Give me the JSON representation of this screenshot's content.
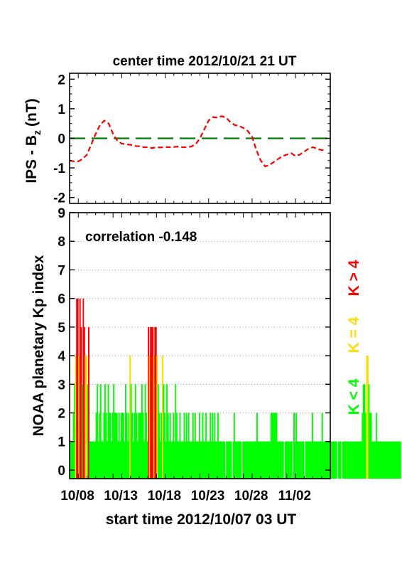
{
  "colors": {
    "bz_line": "#ff0000",
    "zero_line": "#008000",
    "kp_low": "#00ff00",
    "kp_mid": "#ffdd00",
    "kp_high": "#ff0000"
  },
  "chart_data": [
    {
      "type": "line",
      "title": "center time 2012/10/21 21 UT",
      "ylabel_main": "IPS - B",
      "ylabel_sub": "z",
      "ylabel_unit": "(nT)",
      "xlim": [
        0,
        30
      ],
      "ylim": [
        -2.2,
        2.2
      ],
      "yticks": [
        "2",
        "1",
        "0",
        "-1",
        "-2"
      ],
      "ytick_values": [
        2,
        1,
        0,
        -1,
        -2
      ],
      "reference_line": {
        "y": 0,
        "style": "dashed"
      },
      "series": [
        {
          "style": "dashed",
          "x": [
            0.0,
            0.5,
            1.0,
            1.5,
            2.0,
            2.5,
            3.0,
            3.5,
            4.0,
            4.5,
            5.0,
            5.5,
            6.0,
            6.5,
            7.0,
            7.5,
            8.0,
            8.5,
            9.0,
            9.5,
            10.0,
            10.5,
            11.0,
            11.5,
            12.0,
            12.5,
            13.0,
            13.5,
            14.0,
            14.5,
            15.0,
            15.5,
            16.0,
            16.5,
            17.0,
            17.5,
            18.0,
            18.5,
            19.0,
            19.5,
            20.0,
            20.5,
            21.0,
            21.5,
            22.0,
            22.5,
            23.0,
            23.5,
            24.0,
            24.5,
            25.0,
            25.5,
            26.0,
            26.5,
            27.0,
            27.5,
            28.0,
            28.5,
            29.0,
            29.5
          ],
          "values": [
            -0.75,
            -0.78,
            -0.78,
            -0.7,
            -0.55,
            -0.2,
            0.15,
            0.45,
            0.6,
            0.5,
            0.15,
            -0.08,
            -0.18,
            -0.2,
            -0.22,
            -0.26,
            -0.27,
            -0.3,
            -0.3,
            -0.33,
            -0.3,
            -0.31,
            -0.29,
            -0.3,
            -0.29,
            -0.28,
            -0.3,
            -0.3,
            -0.28,
            -0.2,
            0.0,
            0.3,
            0.6,
            0.72,
            0.7,
            0.75,
            0.7,
            0.55,
            0.45,
            0.42,
            0.35,
            0.25,
            0.05,
            -0.4,
            -0.75,
            -0.95,
            -0.9,
            -0.8,
            -0.7,
            -0.6,
            -0.55,
            -0.5,
            -0.6,
            -0.55,
            -0.45,
            -0.35,
            -0.3,
            -0.35,
            -0.4,
            -0.38
          ]
        }
      ]
    },
    {
      "type": "bar",
      "annotation": "correlation -0.148",
      "ylabel": "NOAA planetary Kp index",
      "xlabel": "start time 2012/10/07 03 UT",
      "xlim": [
        0,
        30
      ],
      "ylim": [
        -0.3,
        9
      ],
      "yticks": [
        "9",
        "8",
        "7",
        "6",
        "5",
        "4",
        "3",
        "2",
        "1",
        "0"
      ],
      "ytick_values": [
        9,
        8,
        7,
        6,
        5,
        4,
        3,
        2,
        1,
        0
      ],
      "xticks": [
        "10/08",
        "10/13",
        "10/18",
        "10/23",
        "10/28",
        "11/02"
      ],
      "xtick_values": [
        0.9,
        5.9,
        10.9,
        15.9,
        20.9,
        25.9
      ],
      "grid": true,
      "legend": [
        "K < 4",
        "K = 4",
        "K > 4"
      ],
      "bar_step": 0.125,
      "kp": [
        1,
        1,
        1,
        2,
        3,
        4,
        6,
        6,
        4,
        6,
        5,
        3,
        6,
        5,
        4,
        4,
        3,
        5,
        1,
        1,
        1,
        1,
        1,
        1,
        2,
        3,
        1,
        2,
        3,
        1,
        1,
        2,
        3,
        2,
        1,
        3,
        2,
        2,
        1,
        2,
        3,
        2,
        2,
        2,
        1,
        2,
        1,
        2,
        2,
        2,
        1,
        3,
        2,
        1,
        2,
        4,
        3,
        2,
        1,
        2,
        3,
        2,
        1,
        2,
        2,
        2,
        3,
        2,
        1,
        3,
        2,
        1,
        5,
        4,
        5,
        5,
        5,
        4,
        5,
        5,
        4,
        3,
        2,
        1,
        2,
        4,
        3,
        2,
        1,
        3,
        2,
        1,
        2,
        1,
        1,
        2,
        1,
        3,
        2,
        1,
        1,
        2,
        1,
        1,
        1,
        2,
        1,
        2,
        1,
        2,
        1,
        1,
        1,
        2,
        1,
        2,
        1,
        1,
        1,
        2,
        1,
        1,
        2,
        1,
        1,
        2,
        1,
        1,
        1,
        2,
        1,
        2,
        1,
        2,
        1,
        1,
        2,
        1,
        1,
        1,
        1,
        1,
        1,
        0,
        1,
        1,
        1,
        1,
        1,
        0,
        1,
        2,
        1,
        1,
        1,
        1,
        1,
        1,
        0,
        1,
        1,
        1,
        1,
        1,
        1,
        1,
        1,
        1,
        1,
        1,
        1,
        1,
        2,
        1,
        1,
        1,
        1,
        1,
        1,
        1,
        1,
        1,
        1,
        1,
        1,
        2,
        2,
        2,
        2,
        2,
        2,
        1,
        1,
        1,
        1,
        1,
        1,
        0,
        1,
        1,
        1,
        1,
        1,
        1,
        1,
        0,
        2,
        1,
        2,
        1,
        1,
        1,
        1,
        1,
        1,
        1,
        0,
        1,
        1,
        1,
        1,
        1,
        1,
        2,
        1,
        1,
        1,
        1,
        1,
        1,
        1,
        1,
        2,
        1,
        1,
        1,
        1,
        1,
        1,
        0,
        1,
        1,
        1,
        1,
        1,
        1,
        0,
        1,
        1,
        1,
        0,
        1,
        1,
        1,
        1,
        1,
        1,
        1,
        1,
        1,
        1,
        1,
        1,
        1,
        1,
        1,
        1,
        1,
        1,
        2,
        3,
        3,
        2,
        4,
        4,
        3,
        2,
        2,
        1,
        1,
        1,
        1,
        2,
        1,
        1,
        1,
        1,
        1,
        1,
        1,
        1,
        1,
        1,
        1,
        1,
        1,
        1,
        1,
        1,
        1,
        1,
        1,
        1,
        1,
        1,
        0,
        1,
        1,
        1,
        1
      ]
    }
  ]
}
